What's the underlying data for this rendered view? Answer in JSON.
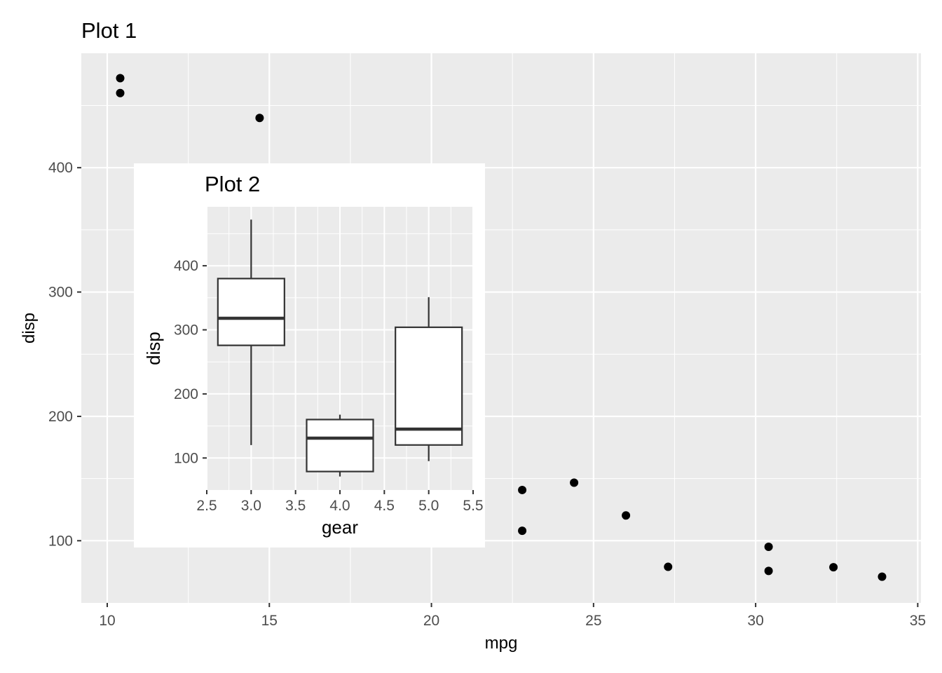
{
  "chart_data": [
    {
      "type": "scatter",
      "title": "Plot 1",
      "xlabel": "mpg",
      "ylabel": "disp",
      "xlim": [
        9.2,
        35.1
      ],
      "ylim": [
        50,
        492
      ],
      "x_ticks": [
        10,
        15,
        20,
        25,
        30,
        35
      ],
      "y_ticks": [
        100,
        200,
        300,
        400
      ],
      "grid": true,
      "points": [
        {
          "x": 10.4,
          "y": 472
        },
        {
          "x": 10.4,
          "y": 460
        },
        {
          "x": 14.7,
          "y": 440
        },
        {
          "x": 22.8,
          "y": 140.8
        },
        {
          "x": 24.4,
          "y": 146.7
        },
        {
          "x": 26.0,
          "y": 120.3
        },
        {
          "x": 22.8,
          "y": 108
        },
        {
          "x": 27.3,
          "y": 79
        },
        {
          "x": 30.4,
          "y": 95.1
        },
        {
          "x": 30.4,
          "y": 75.7
        },
        {
          "x": 32.4,
          "y": 78.7
        },
        {
          "x": 33.9,
          "y": 71.1
        }
      ]
    },
    {
      "type": "box",
      "title": "Plot 2",
      "xlabel": "gear",
      "ylabel": "disp",
      "xlim": [
        2.5,
        5.5
      ],
      "ylim": [
        50,
        492
      ],
      "x_ticks": [
        "2.5",
        "3.0",
        "3.5",
        "4.0",
        "4.5",
        "5.0",
        "5.5"
      ],
      "y_ticks": [
        100,
        200,
        300,
        400
      ],
      "grid": true,
      "boxes": [
        {
          "x": 3,
          "lower_whisker": 120.1,
          "q1": 275.8,
          "median": 318,
          "q3": 380,
          "upper_whisker": 472
        },
        {
          "x": 4,
          "lower_whisker": 71.1,
          "q1": 78.9,
          "median": 130.9,
          "q3": 160,
          "upper_whisker": 167.6
        },
        {
          "x": 5,
          "lower_whisker": 95.1,
          "q1": 120.3,
          "median": 145,
          "q3": 304,
          "upper_whisker": 351
        }
      ]
    }
  ]
}
